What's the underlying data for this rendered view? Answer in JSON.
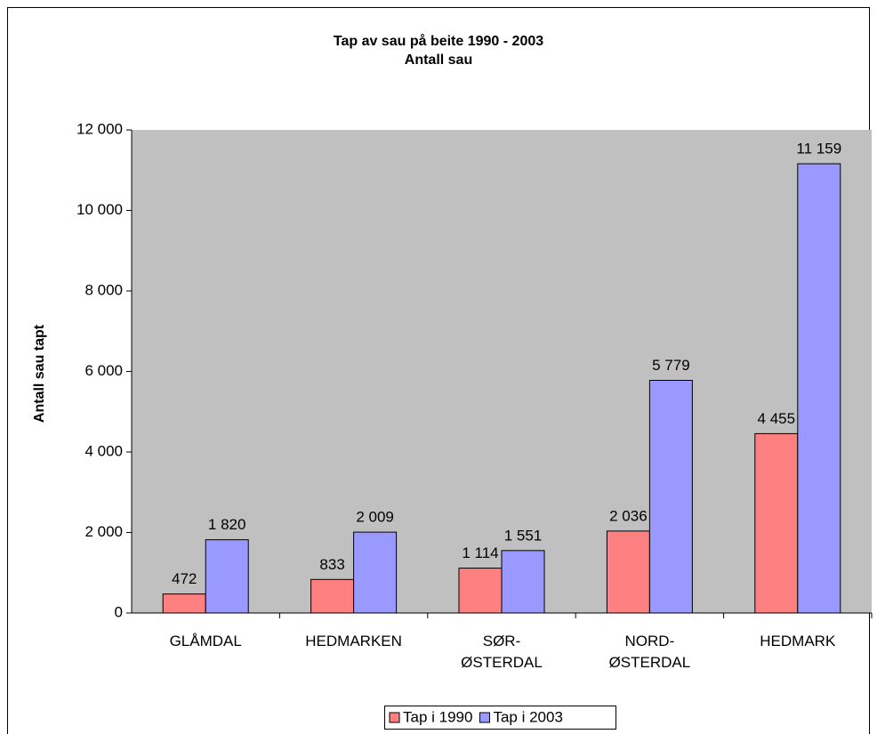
{
  "chart_data": {
    "type": "bar",
    "title": "Tap av sau på beite 1990 - 2003",
    "subtitle": "Antall sau",
    "y_label": "Antall sau tapt",
    "categories": [
      "GLÅMDAL",
      "HEDMARKEN",
      "SØR-\nØSTERDAL",
      "NORD-\nØSTERDAL",
      "HEDMARK"
    ],
    "series": [
      {
        "name": "Tap i 1990",
        "color": "#ff8080",
        "values": [
          472,
          833,
          1114,
          2036,
          4455
        ],
        "value_labels": [
          "472",
          "833",
          "1 114",
          "2 036",
          "4 455"
        ]
      },
      {
        "name": "Tap i 2003",
        "color": "#9999ff",
        "values": [
          1820,
          2009,
          1551,
          5779,
          11159
        ],
        "value_labels": [
          "1 820",
          "2 009",
          "1 551",
          "5 779",
          "11 159"
        ]
      }
    ],
    "ylim": [
      0,
      12000
    ],
    "yticks": [
      0,
      {
        "value": 2000,
        "label": "2 000"
      },
      {
        "value": 4000,
        "label": "4 000"
      },
      {
        "value": 6000,
        "label": "6 000"
      },
      {
        "value": 8000,
        "label": "8 000"
      },
      {
        "value": 10000,
        "label": "10 000"
      },
      {
        "value": 12000,
        "label": "12 000"
      }
    ],
    "plot_background": "#c0c0c0",
    "legend": "bottom"
  }
}
